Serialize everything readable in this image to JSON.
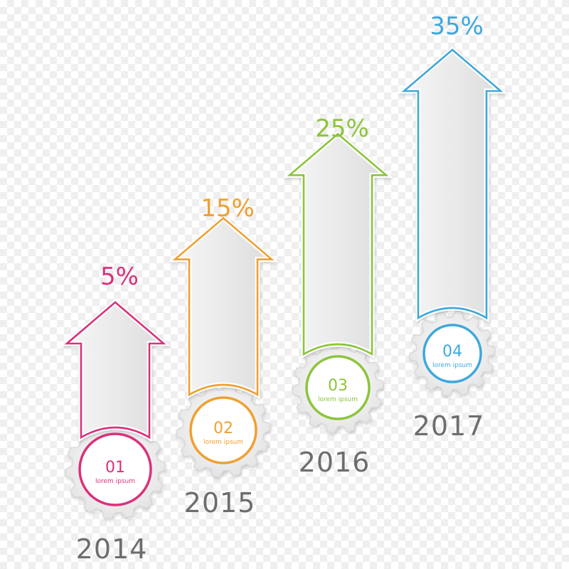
{
  "chart_data": {
    "type": "bar",
    "title": "",
    "xlabel": "",
    "ylabel": "",
    "categories": [
      "2014",
      "2015",
      "2016",
      "2017"
    ],
    "values": [
      5,
      15,
      25,
      35
    ],
    "value_labels": [
      "5%",
      "15%",
      "25%",
      "35%"
    ],
    "badge_numbers": [
      "01",
      "02",
      "03",
      "04"
    ],
    "badge_text": [
      "lorem ipsum",
      "lorem ipsum",
      "lorem ipsum",
      "lorem ipsum"
    ],
    "colors": [
      "#d9327b",
      "#f0a030",
      "#8cc43c",
      "#3ea8dc"
    ],
    "mark_shape": "up-arrow",
    "badge_icon": "gear-icon",
    "grid": false,
    "legend": "none"
  }
}
